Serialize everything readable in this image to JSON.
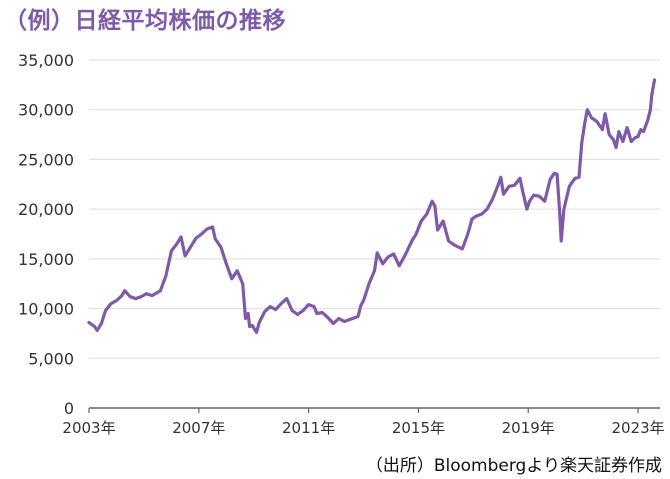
{
  "title": "（例）日経平均株価の推移",
  "source": "（出所）Bloombergより楽天証券作成",
  "colors": {
    "line": "#7e5aa8",
    "title": "#7e5aa8",
    "grid": "#dddddd",
    "axis": "#666666"
  },
  "chart_data": {
    "type": "line",
    "title": "（例）日経平均株価の推移",
    "xlabel": "",
    "ylabel": "",
    "ylim": [
      0,
      35000
    ],
    "yticks": [
      0,
      5000,
      10000,
      15000,
      20000,
      25000,
      30000,
      35000
    ],
    "ytick_labels": [
      "0",
      "5,000",
      "10,000",
      "15,000",
      "20,000",
      "25,000",
      "30,000",
      "35,000"
    ],
    "xlim": [
      2003.0,
      2023.8
    ],
    "xticks": [
      2003,
      2007,
      2011,
      2015,
      2019,
      2023
    ],
    "xtick_labels": [
      "2003年",
      "2007年",
      "2011年",
      "2015年",
      "2019年",
      "2023年"
    ],
    "grid": "horizontal",
    "legend": "none",
    "series": [
      {
        "x": [
          2003.0,
          2003.2,
          2003.3,
          2003.45,
          2003.6,
          2003.8,
          2004.0,
          2004.2,
          2004.3,
          2004.5,
          2004.7,
          2004.9,
          2005.1,
          2005.3,
          2005.6,
          2005.8,
          2006.0,
          2006.2,
          2006.35,
          2006.5,
          2006.7,
          2006.9,
          2007.1,
          2007.3,
          2007.5,
          2007.6,
          2007.8,
          2008.0,
          2008.2,
          2008.4,
          2008.6,
          2008.7,
          2008.8,
          2008.85,
          2008.95,
          2009.1,
          2009.2,
          2009.4,
          2009.6,
          2009.8,
          2010.0,
          2010.2,
          2010.4,
          2010.6,
          2010.8,
          2011.0,
          2011.2,
          2011.3,
          2011.5,
          2011.7,
          2011.9,
          2012.1,
          2012.3,
          2012.5,
          2012.8,
          2012.9,
          2013.0,
          2013.2,
          2013.4,
          2013.5,
          2013.7,
          2013.9,
          2014.1,
          2014.3,
          2014.5,
          2014.8,
          2014.9,
          2015.1,
          2015.3,
          2015.5,
          2015.6,
          2015.7,
          2015.9,
          2016.1,
          2016.3,
          2016.6,
          2016.8,
          2016.95,
          2017.1,
          2017.3,
          2017.5,
          2017.7,
          2017.9,
          2018.0,
          2018.1,
          2018.3,
          2018.5,
          2018.7,
          2018.8,
          2018.95,
          2019.05,
          2019.2,
          2019.4,
          2019.6,
          2019.8,
          2019.95,
          2020.05,
          2020.15,
          2020.2,
          2020.3,
          2020.5,
          2020.7,
          2020.85,
          2020.95,
          2021.05,
          2021.15,
          2021.3,
          2021.5,
          2021.7,
          2021.8,
          2021.95,
          2022.1,
          2022.2,
          2022.3,
          2022.45,
          2022.6,
          2022.75,
          2022.9,
          2023.0,
          2023.1,
          2023.2,
          2023.35,
          2023.45,
          2023.5,
          2023.6
        ],
        "values": [
          8600,
          8200,
          7800,
          8500,
          9800,
          10500,
          10800,
          11300,
          11800,
          11200,
          11000,
          11200,
          11500,
          11300,
          11800,
          13300,
          15800,
          16500,
          17200,
          15300,
          16200,
          17100,
          17500,
          18000,
          18200,
          17000,
          16200,
          14500,
          13000,
          13800,
          12500,
          9000,
          9500,
          8200,
          8300,
          7600,
          8600,
          9700,
          10200,
          9900,
          10500,
          11000,
          9800,
          9400,
          9800,
          10400,
          10200,
          9500,
          9600,
          9100,
          8500,
          9000,
          8700,
          8900,
          9200,
          10300,
          10800,
          12500,
          13800,
          15600,
          14500,
          15200,
          15500,
          14300,
          15300,
          17000,
          17400,
          18800,
          19500,
          20800,
          20300,
          17900,
          18800,
          16800,
          16400,
          16000,
          17500,
          19000,
          19300,
          19500,
          20000,
          21000,
          22400,
          23200,
          21500,
          22300,
          22400,
          23100,
          21800,
          20000,
          20800,
          21400,
          21300,
          20800,
          23000,
          23600,
          23500,
          19500,
          16800,
          20000,
          22300,
          23100,
          23200,
          26700,
          28500,
          30000,
          29200,
          28800,
          28000,
          29600,
          27500,
          27000,
          26200,
          27800,
          26800,
          28200,
          26800,
          27200,
          27300,
          28000,
          27800,
          28900,
          30000,
          31500,
          33000
        ]
      }
    ]
  }
}
